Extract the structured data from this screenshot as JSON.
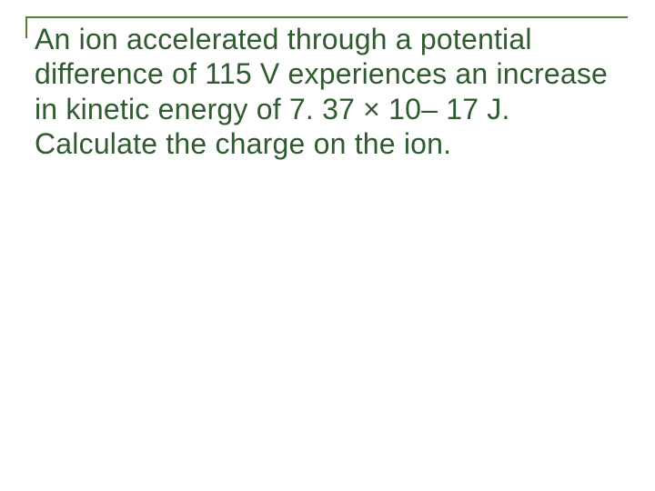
{
  "slide": {
    "body": "An ion accelerated through a potential difference of 115 V experiences an increase in kinetic energy of 7. 37 × 10– 17 J. Calculate the charge on the ion.",
    "colors": {
      "rule": "#5a7a3a",
      "text": "#2f5b2f",
      "background": "#ffffff"
    },
    "font_size_pt": 24
  }
}
